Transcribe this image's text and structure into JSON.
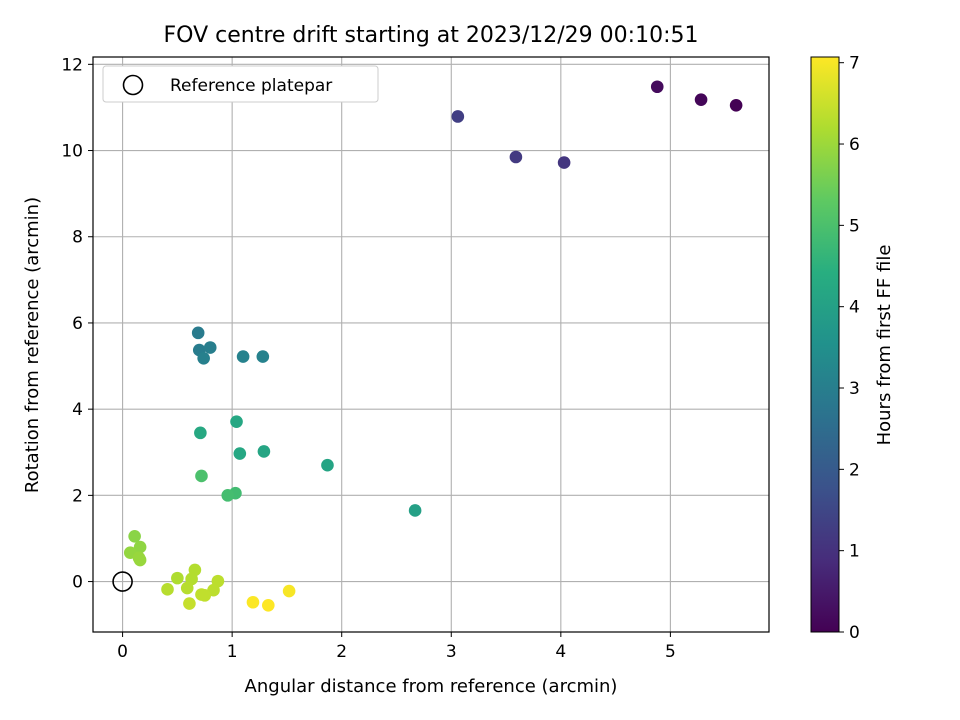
{
  "chart_data": {
    "type": "scatter",
    "title": "FOV centre drift starting at 2023/12/29 00:10:51",
    "xlabel": "Angular distance from reference (arcmin)",
    "ylabel": "Rotation from reference (arcmin)",
    "xlim": [
      -0.27,
      5.9
    ],
    "ylim": [
      -1.17,
      12.17
    ],
    "xticks": [
      0,
      1,
      2,
      3,
      4,
      5
    ],
    "yticks": [
      0,
      2,
      4,
      6,
      8,
      10,
      12
    ],
    "grid": true,
    "legend": {
      "placement": "top-left",
      "entries": [
        "Reference platepar"
      ]
    },
    "reference_point": {
      "x": 0,
      "y": 0,
      "label": "Reference platepar"
    },
    "colorbar": {
      "label": "Hours from first FF file",
      "colormap": "viridis",
      "range": [
        0,
        7.07
      ],
      "ticks": [
        0,
        1,
        2,
        3,
        4,
        5,
        6,
        7
      ]
    },
    "points": [
      {
        "x": 5.6,
        "y": 11.05,
        "hours": 0.0
      },
      {
        "x": 5.28,
        "y": 11.18,
        "hours": 0.1
      },
      {
        "x": 4.88,
        "y": 11.48,
        "hours": 0.2
      },
      {
        "x": 4.03,
        "y": 9.72,
        "hours": 1.1
      },
      {
        "x": 3.59,
        "y": 9.85,
        "hours": 1.2
      },
      {
        "x": 3.06,
        "y": 10.79,
        "hours": 1.3
      },
      {
        "x": 0.69,
        "y": 5.77,
        "hours": 2.9
      },
      {
        "x": 0.7,
        "y": 5.37,
        "hours": 2.95
      },
      {
        "x": 0.8,
        "y": 5.43,
        "hours": 3.0
      },
      {
        "x": 0.74,
        "y": 5.18,
        "hours": 3.05
      },
      {
        "x": 1.1,
        "y": 5.22,
        "hours": 3.1
      },
      {
        "x": 1.28,
        "y": 5.22,
        "hours": 3.1
      },
      {
        "x": 2.67,
        "y": 1.65,
        "hours": 4.0
      },
      {
        "x": 1.87,
        "y": 2.7,
        "hours": 4.1
      },
      {
        "x": 1.29,
        "y": 3.02,
        "hours": 4.15
      },
      {
        "x": 1.07,
        "y": 2.97,
        "hours": 4.2
      },
      {
        "x": 1.04,
        "y": 3.71,
        "hours": 4.2
      },
      {
        "x": 0.71,
        "y": 3.45,
        "hours": 4.25
      },
      {
        "x": 1.03,
        "y": 2.05,
        "hours": 4.85
      },
      {
        "x": 0.96,
        "y": 2.0,
        "hours": 4.9
      },
      {
        "x": 0.72,
        "y": 2.45,
        "hours": 5.0
      },
      {
        "x": 0.11,
        "y": 1.05,
        "hours": 5.8
      },
      {
        "x": 0.16,
        "y": 0.8,
        "hours": 5.85
      },
      {
        "x": 0.07,
        "y": 0.67,
        "hours": 5.9
      },
      {
        "x": 0.15,
        "y": 0.55,
        "hours": 5.95
      },
      {
        "x": 0.16,
        "y": 0.5,
        "hours": 5.95
      },
      {
        "x": 0.5,
        "y": 0.08,
        "hours": 6.2
      },
      {
        "x": 0.66,
        "y": 0.27,
        "hours": 6.25
      },
      {
        "x": 0.63,
        "y": 0.06,
        "hours": 6.25
      },
      {
        "x": 0.41,
        "y": -0.18,
        "hours": 6.3
      },
      {
        "x": 0.59,
        "y": -0.15,
        "hours": 6.3
      },
      {
        "x": 0.87,
        "y": 0.01,
        "hours": 6.35
      },
      {
        "x": 0.83,
        "y": -0.2,
        "hours": 6.35
      },
      {
        "x": 0.72,
        "y": -0.3,
        "hours": 6.4
      },
      {
        "x": 0.75,
        "y": -0.32,
        "hours": 6.4
      },
      {
        "x": 0.61,
        "y": -0.51,
        "hours": 6.45
      },
      {
        "x": 1.52,
        "y": -0.22,
        "hours": 7.0
      },
      {
        "x": 1.19,
        "y": -0.48,
        "hours": 7.05
      },
      {
        "x": 1.33,
        "y": -0.55,
        "hours": 7.07
      }
    ]
  }
}
